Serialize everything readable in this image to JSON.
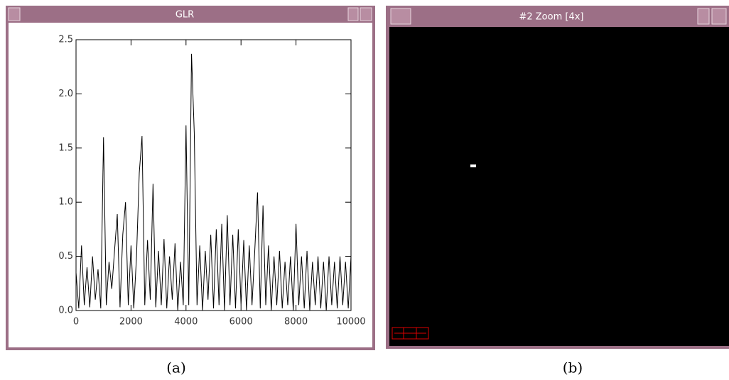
{
  "windows": [
    {
      "title": "GLR"
    },
    {
      "title": "#2 Zoom [4x]"
    }
  ],
  "captions": [
    "(a)",
    "(b)"
  ],
  "chart_data": {
    "type": "line",
    "color": "#000000",
    "x": [
      0,
      100,
      200,
      300,
      400,
      500,
      600,
      700,
      800,
      900,
      1000,
      1100,
      1200,
      1300,
      1400,
      1500,
      1600,
      1700,
      1800,
      1900,
      2000,
      2100,
      2200,
      2300,
      2400,
      2500,
      2600,
      2700,
      2800,
      2900,
      3000,
      3100,
      3200,
      3300,
      3400,
      3500,
      3600,
      3700,
      3800,
      3900,
      4000,
      4100,
      4200,
      4300,
      4400,
      4500,
      4600,
      4700,
      4800,
      4900,
      5000,
      5100,
      5200,
      5300,
      5400,
      5500,
      5600,
      5700,
      5800,
      5900,
      6000,
      6100,
      6200,
      6300,
      6400,
      6500,
      6600,
      6700,
      6800,
      6900,
      7000,
      7100,
      7200,
      7300,
      7400,
      7500,
      7600,
      7700,
      7800,
      7900,
      8000,
      8100,
      8200,
      8300,
      8400,
      8500,
      8600,
      8700,
      8800,
      8900,
      9000,
      9100,
      9200,
      9300,
      9400,
      9500,
      9600,
      9700,
      9800,
      9900,
      10000
    ],
    "values": [
      0.35,
      0.02,
      0.6,
      0.05,
      0.4,
      0.03,
      0.5,
      0.1,
      0.38,
      0.02,
      1.6,
      0.05,
      0.45,
      0.2,
      0.55,
      0.89,
      0.03,
      0.7,
      1.0,
      0.05,
      0.6,
      0.02,
      0.5,
      1.27,
      1.61,
      0.05,
      0.65,
      0.1,
      1.17,
      0.03,
      0.55,
      0.05,
      0.66,
      0.02,
      0.5,
      0.1,
      0.62,
      0.0,
      0.45,
      0.05,
      1.71,
      0.05,
      2.37,
      1.64,
      0.05,
      0.6,
      0.0,
      0.55,
      0.1,
      0.7,
      0.02,
      0.75,
      0.05,
      0.8,
      0.0,
      0.88,
      0.05,
      0.7,
      0.02,
      0.75,
      0.05,
      0.65,
      0.0,
      0.6,
      0.05,
      0.55,
      1.09,
      0.02,
      0.97,
      0.05,
      0.6,
      0.0,
      0.5,
      0.05,
      0.55,
      0.02,
      0.45,
      0.05,
      0.5,
      0.0,
      0.8,
      0.05,
      0.5,
      0.02,
      0.55,
      0.0,
      0.45,
      0.05,
      0.5,
      0.02,
      0.45,
      0.0,
      0.5,
      0.05,
      0.45,
      0.02,
      0.5,
      0.05,
      0.45,
      0.02,
      0.5
    ],
    "xlim": [
      0,
      10000
    ],
    "xticks": [
      0,
      2000,
      4000,
      6000,
      8000,
      10000
    ],
    "ylim": [
      0,
      2.5
    ],
    "yticks": [
      {
        "value": 0,
        "label": "0.0"
      },
      {
        "value": 0.5,
        "label": "0.5"
      },
      {
        "value": 1,
        "label": "1.0"
      },
      {
        "value": 1.5,
        "label": "1.5"
      },
      {
        "value": 2,
        "label": "2.0"
      },
      {
        "value": 2.5,
        "label": "2.5"
      }
    ]
  }
}
